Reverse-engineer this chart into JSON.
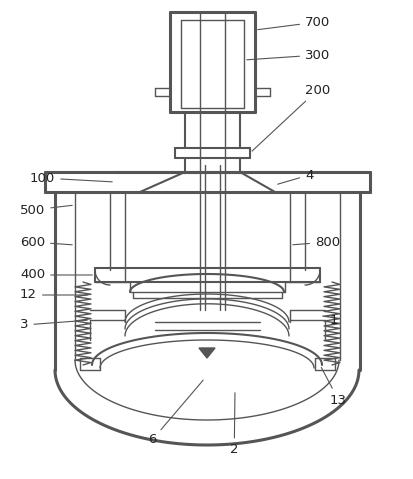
{
  "bg_color": "#ffffff",
  "line_color": "#555555",
  "lw_thin": 1.0,
  "lw_med": 1.5,
  "lw_thick": 2.2
}
